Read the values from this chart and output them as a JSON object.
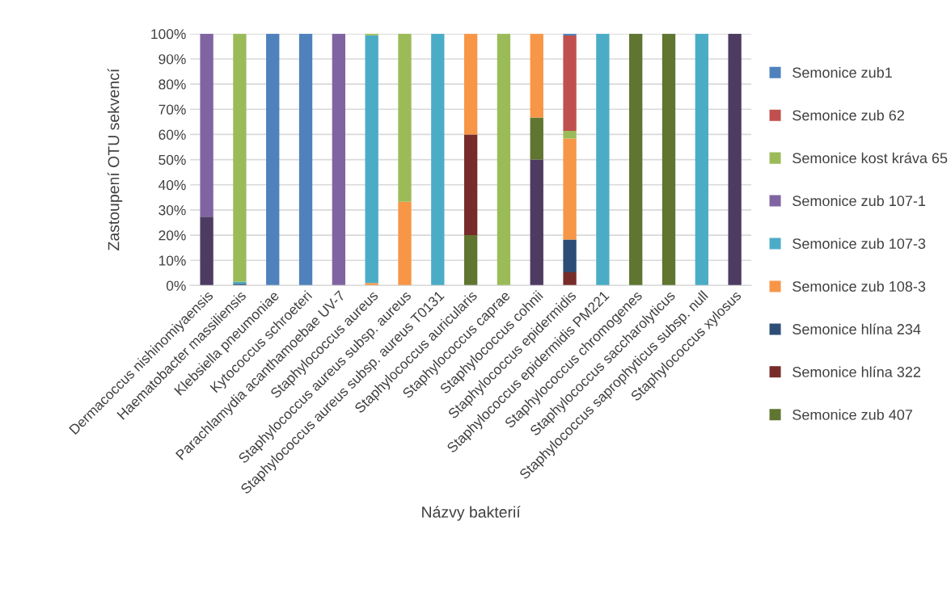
{
  "chart_data": {
    "type": "bar",
    "stacked": true,
    "xlabel": "Názvy bakterií",
    "ylabel": "Zastoupení OTU sekvencí",
    "categories": [
      "Dermacoccus nishinomiyaensis",
      "Haematobacter massiliensis",
      "Klebsiella pneumoniae",
      "Kytococcus schroeteri",
      "Parachlamydia acanthamoebae UV-7",
      "Staphylococcus aureus",
      "Staphylococcus aureus subsp. aureus",
      "Staphylococcus aureus subsp. aureus T0131",
      "Staphylococcus auricularis",
      "Staphylococcus caprae",
      "Staphylococcus cohnii",
      "Staphylococcus epidermidis",
      "Staphylococcus epidermidis PM221",
      "Staphylococcus chromogenes",
      "Staphylococcus saccharolyticus",
      "Staphylococcus saprophyticus subsp. null",
      "Staphylococcus xylosus"
    ],
    "series": [
      {
        "color": "#4d3b62",
        "values": [
          27.3,
          0,
          0,
          0,
          0,
          0,
          0,
          0,
          0,
          0,
          50,
          0,
          0,
          0,
          0,
          0,
          100
        ]
      },
      {
        "name": "Semonice zub 407",
        "color": "#5f7530",
        "values": [
          0,
          0,
          0,
          0,
          0,
          0,
          0,
          0,
          20,
          0,
          16.7,
          0,
          0,
          100,
          100,
          0,
          0
        ]
      },
      {
        "name": "Semonice hlína 322",
        "color": "#772c2a",
        "values": [
          0,
          0,
          0,
          0,
          0,
          0,
          0,
          0,
          40,
          0,
          0,
          5.3,
          0,
          0,
          0,
          0,
          0
        ]
      },
      {
        "name": "Semonice hlína 234",
        "color": "#2c4d75",
        "values": [
          0,
          0.7,
          0,
          0,
          0,
          0,
          0,
          0,
          0,
          0,
          0,
          13,
          0,
          0,
          0,
          0,
          0
        ]
      },
      {
        "name": "Semonice zub 108-3",
        "color": "#f79646",
        "values": [
          0,
          0,
          0,
          0,
          0,
          1,
          33.3,
          0,
          40,
          0,
          33.3,
          40.1,
          0,
          0,
          0,
          0,
          0
        ]
      },
      {
        "name": "Semonice zub 107-3",
        "color": "#4bacc6",
        "values": [
          0,
          0.8,
          0,
          0,
          0,
          98.4,
          0,
          100,
          0,
          0,
          0,
          0,
          100,
          0,
          0,
          100,
          0
        ]
      },
      {
        "name": "Semonice zub 107-1",
        "color": "#8064a2",
        "values": [
          72.7,
          0,
          0,
          0,
          100,
          0,
          0,
          0,
          0,
          0,
          0,
          0,
          0,
          0,
          0,
          0,
          0
        ]
      },
      {
        "name": "Semonice kost kráva 65",
        "color": "#9bbb59",
        "values": [
          0,
          98.5,
          0,
          0,
          0,
          0.6,
          66.7,
          0,
          0,
          100,
          0,
          3,
          0,
          0,
          0,
          0,
          0
        ]
      },
      {
        "name": "Semonice zub 62",
        "color": "#c0504d",
        "values": [
          0,
          0,
          0,
          0,
          0,
          0,
          0,
          0,
          0,
          0,
          0,
          37.9,
          0,
          0,
          0,
          0,
          0
        ]
      },
      {
        "name": "Semonice zub1",
        "color": "#4f81bd",
        "values": [
          0,
          0,
          100,
          100,
          0,
          0,
          0,
          0,
          0,
          0,
          0,
          0.7,
          0,
          0,
          0,
          0,
          0
        ]
      }
    ],
    "ylim": [
      0,
      100
    ],
    "yticks": [
      {
        "value": 0,
        "label": "0%"
      },
      {
        "value": 10,
        "label": "10%"
      },
      {
        "value": 20,
        "label": "20%"
      },
      {
        "value": 30,
        "label": "30%"
      },
      {
        "value": 40,
        "label": "40%"
      },
      {
        "value": 50,
        "label": "50%"
      },
      {
        "value": 60,
        "label": "60%"
      },
      {
        "value": 70,
        "label": "70%"
      },
      {
        "value": 80,
        "label": "80%"
      },
      {
        "value": 90,
        "label": "90%"
      },
      {
        "value": 100,
        "label": "100%"
      }
    ],
    "grid": "y",
    "legend": "right"
  }
}
